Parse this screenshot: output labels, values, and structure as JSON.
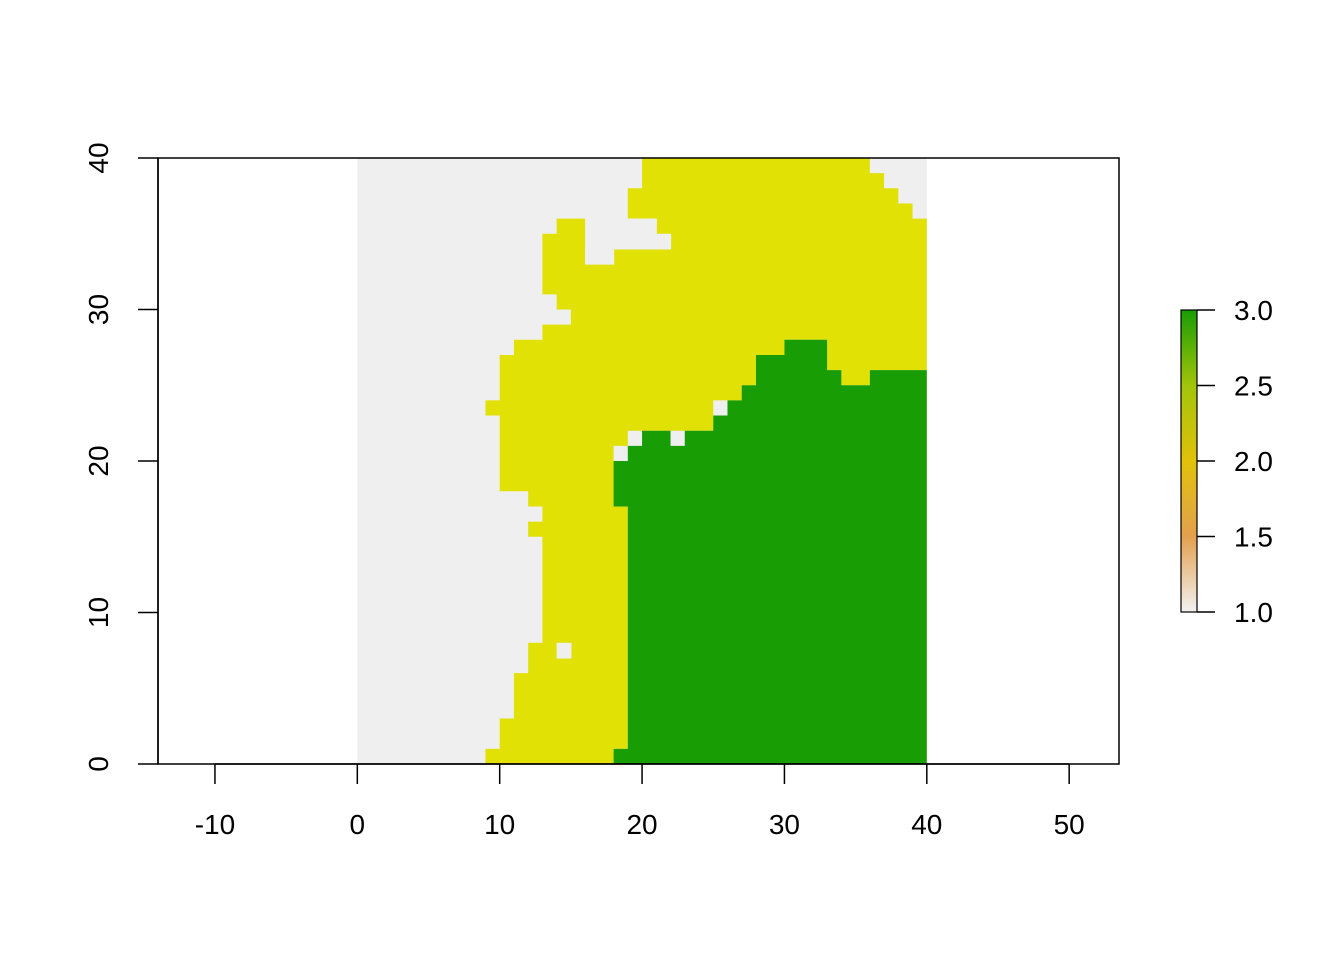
{
  "chart_data": {
    "type": "heatmap",
    "title": "",
    "xlabel": "",
    "ylabel": "",
    "xlim": [
      -14,
      53.5
    ],
    "ylim": [
      0,
      40
    ],
    "x_ticks": [
      "-10",
      "0",
      "10",
      "20",
      "30",
      "40",
      "50"
    ],
    "y_ticks": [
      "0",
      "10",
      "20",
      "30",
      "40"
    ],
    "raster_extent": {
      "xmin": 0,
      "xmax": 40,
      "ymin": 0,
      "ymax": 40
    },
    "class_colors": {
      "1": "#EFEFEF",
      "2": "#E1E106",
      "3": "#189D04"
    },
    "regions": [
      {
        "value": 1,
        "color": "#EFEFEF",
        "x_range": [
          0,
          40
        ],
        "y_range": [
          0,
          40
        ]
      },
      {
        "value": 2,
        "color": "#E1E106",
        "outline": [
          [
            9,
            0
          ],
          [
            18,
            0
          ],
          [
            18,
            1
          ],
          [
            19,
            1
          ],
          [
            19,
            17
          ],
          [
            18,
            17
          ],
          [
            18,
            21
          ],
          [
            19,
            21
          ],
          [
            19,
            22
          ],
          [
            25,
            22
          ],
          [
            25,
            24
          ],
          [
            27,
            24
          ],
          [
            27,
            25
          ],
          [
            28,
            25
          ],
          [
            28,
            27
          ],
          [
            30,
            27
          ],
          [
            30,
            28
          ],
          [
            33,
            28
          ],
          [
            33,
            26
          ],
          [
            34,
            26
          ],
          [
            34,
            25
          ],
          [
            36,
            25
          ],
          [
            36,
            26
          ],
          [
            40,
            26
          ],
          [
            40,
            36
          ],
          [
            39,
            36
          ],
          [
            39,
            37
          ],
          [
            38,
            37
          ],
          [
            38,
            38
          ],
          [
            37,
            38
          ],
          [
            37,
            39
          ],
          [
            36,
            39
          ],
          [
            36,
            40
          ],
          [
            20,
            40
          ],
          [
            20,
            38
          ],
          [
            19,
            38
          ],
          [
            19,
            36
          ],
          [
            21,
            36
          ],
          [
            21,
            35
          ],
          [
            18,
            35
          ],
          [
            18,
            33
          ],
          [
            16,
            33
          ],
          [
            16,
            36
          ],
          [
            14,
            36
          ],
          [
            14,
            35
          ],
          [
            13,
            35
          ],
          [
            13,
            31
          ],
          [
            14,
            31
          ],
          [
            14,
            30
          ],
          [
            15,
            30
          ],
          [
            15,
            29
          ],
          [
            13,
            29
          ],
          [
            13,
            28
          ],
          [
            11,
            28
          ],
          [
            11,
            27
          ],
          [
            10,
            27
          ],
          [
            10,
            24
          ],
          [
            9,
            24
          ],
          [
            9,
            23
          ],
          [
            10,
            23
          ],
          [
            10,
            18
          ],
          [
            12,
            18
          ],
          [
            12,
            17
          ],
          [
            13,
            17
          ],
          [
            13,
            16
          ],
          [
            12,
            16
          ],
          [
            12,
            15
          ],
          [
            13,
            15
          ],
          [
            13,
            8
          ],
          [
            12,
            8
          ],
          [
            12,
            6
          ],
          [
            11,
            6
          ],
          [
            11,
            3
          ],
          [
            10,
            3
          ],
          [
            10,
            1
          ],
          [
            9,
            1
          ]
        ]
      },
      {
        "value": 3,
        "color": "#189D04",
        "outline": [
          [
            18,
            0
          ],
          [
            40,
            0
          ],
          [
            40,
            26
          ],
          [
            36,
            26
          ],
          [
            36,
            25
          ],
          [
            34,
            25
          ],
          [
            34,
            26
          ],
          [
            33,
            26
          ],
          [
            33,
            28
          ],
          [
            30,
            28
          ],
          [
            30,
            27
          ],
          [
            28,
            27
          ],
          [
            28,
            25
          ],
          [
            27,
            25
          ],
          [
            27,
            24
          ],
          [
            26,
            24
          ],
          [
            26,
            23
          ],
          [
            25,
            23
          ],
          [
            25,
            22
          ],
          [
            23,
            22
          ],
          [
            23,
            21
          ],
          [
            22,
            21
          ],
          [
            22,
            22
          ],
          [
            20,
            22
          ],
          [
            20,
            21
          ],
          [
            19,
            21
          ],
          [
            19,
            20
          ],
          [
            18,
            20
          ],
          [
            18,
            17
          ],
          [
            19,
            17
          ],
          [
            19,
            1
          ],
          [
            18,
            1
          ]
        ]
      }
    ],
    "holes": [
      {
        "value": 1,
        "cells": [
          [
            16,
            36
          ],
          [
            17,
            35
          ],
          [
            18,
            35
          ],
          [
            19,
            35
          ],
          [
            20,
            35
          ],
          [
            17,
            34
          ],
          [
            18,
            34
          ],
          [
            19,
            34
          ],
          [
            20,
            34
          ],
          [
            21,
            34
          ],
          [
            16,
            33
          ],
          [
            17,
            33
          ],
          [
            14,
            7
          ]
        ]
      }
    ],
    "legend": {
      "type": "colorbar",
      "placement": "right",
      "range": [
        1.0,
        3.0
      ],
      "tick_labels": [
        "1.0",
        "1.5",
        "2.0",
        "2.5",
        "3.0"
      ],
      "stops": [
        {
          "value": 1.0,
          "color": "#F2F2F2"
        },
        {
          "value": 1.5,
          "color": "#E3A04E"
        },
        {
          "value": 2.0,
          "color": "#E1C20A"
        },
        {
          "value": 2.5,
          "color": "#A2C40A"
        },
        {
          "value": 3.0,
          "color": "#189D04"
        }
      ]
    }
  }
}
